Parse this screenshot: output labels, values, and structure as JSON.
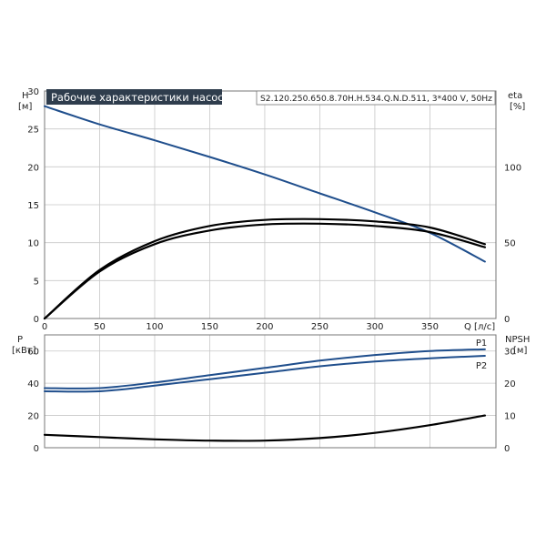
{
  "colors": {
    "blue": "#1f4e8c",
    "black": "#000000",
    "grid": "#c8c8c8",
    "title_bg": "#2f3d4d"
  },
  "chart_data": {
    "type": "line",
    "title": "Рабочие характеристики насоса",
    "model_label": "S2.120.250.650.8.70H.H.534.Q.N.D.511, 3*400 V, 50Hz",
    "grid": true,
    "top_panel": {
      "left_axis": {
        "label": "H",
        "unit": "[м]",
        "lim": [
          0,
          30
        ],
        "ticks": [
          0,
          5,
          10,
          15,
          20,
          25,
          30
        ]
      },
      "right_axis": {
        "label": "eta",
        "unit": "[%]",
        "lim": [
          0,
          150
        ],
        "ticks": [
          0,
          50,
          100
        ]
      },
      "x_axis": {
        "label": "Q [л/с]",
        "lim": [
          0,
          410
        ],
        "ticks": [
          0,
          50,
          100,
          150,
          200,
          250,
          300,
          350
        ]
      },
      "series": [
        {
          "axis": "left",
          "color": "#1f4e8c",
          "x": [
            0,
            50,
            100,
            150,
            200,
            250,
            300,
            350,
            400
          ],
          "y": [
            28.0,
            25.6,
            23.5,
            21.3,
            19.0,
            16.5,
            14.0,
            11.3,
            7.5
          ]
        },
        {
          "axis": "right",
          "color": "#000000",
          "x": [
            0,
            50,
            100,
            150,
            200,
            250,
            300,
            350,
            400
          ],
          "y": [
            0,
            32,
            51,
            61,
            65,
            65.5,
            64,
            60,
            49
          ]
        },
        {
          "axis": "right",
          "color": "#000000",
          "x": [
            0,
            50,
            100,
            150,
            200,
            250,
            300,
            350,
            400
          ],
          "y": [
            0,
            31,
            49,
            58,
            62,
            62.5,
            61,
            57,
            47
          ]
        }
      ]
    },
    "bottom_panel": {
      "left_axis": {
        "label": "P",
        "unit": "[кВт]",
        "lim": [
          0,
          70
        ],
        "ticks": [
          0,
          20,
          40,
          60
        ]
      },
      "right_axis": {
        "label": "NPSH",
        "unit": "[м]",
        "lim": [
          0,
          35
        ],
        "ticks": [
          0,
          10,
          20,
          30
        ]
      },
      "series": [
        {
          "name": "P1",
          "axis": "left",
          "color": "#1f4e8c",
          "x": [
            0,
            50,
            100,
            150,
            200,
            250,
            300,
            350,
            400
          ],
          "y": [
            37,
            37,
            40.5,
            45,
            49.5,
            54,
            57.5,
            60,
            61
          ]
        },
        {
          "name": "P2",
          "axis": "left",
          "color": "#1f4e8c",
          "x": [
            0,
            50,
            100,
            150,
            200,
            250,
            300,
            350,
            400
          ],
          "y": [
            35,
            35,
            38.5,
            42.5,
            46.5,
            50.5,
            53.5,
            55.5,
            57
          ]
        },
        {
          "axis": "right",
          "color": "#000000",
          "x": [
            0,
            50,
            100,
            150,
            200,
            250,
            300,
            350,
            400
          ],
          "y": [
            4,
            3.3,
            2.6,
            2.2,
            2.2,
            3.0,
            4.6,
            7.0,
            10.0
          ]
        }
      ]
    }
  }
}
